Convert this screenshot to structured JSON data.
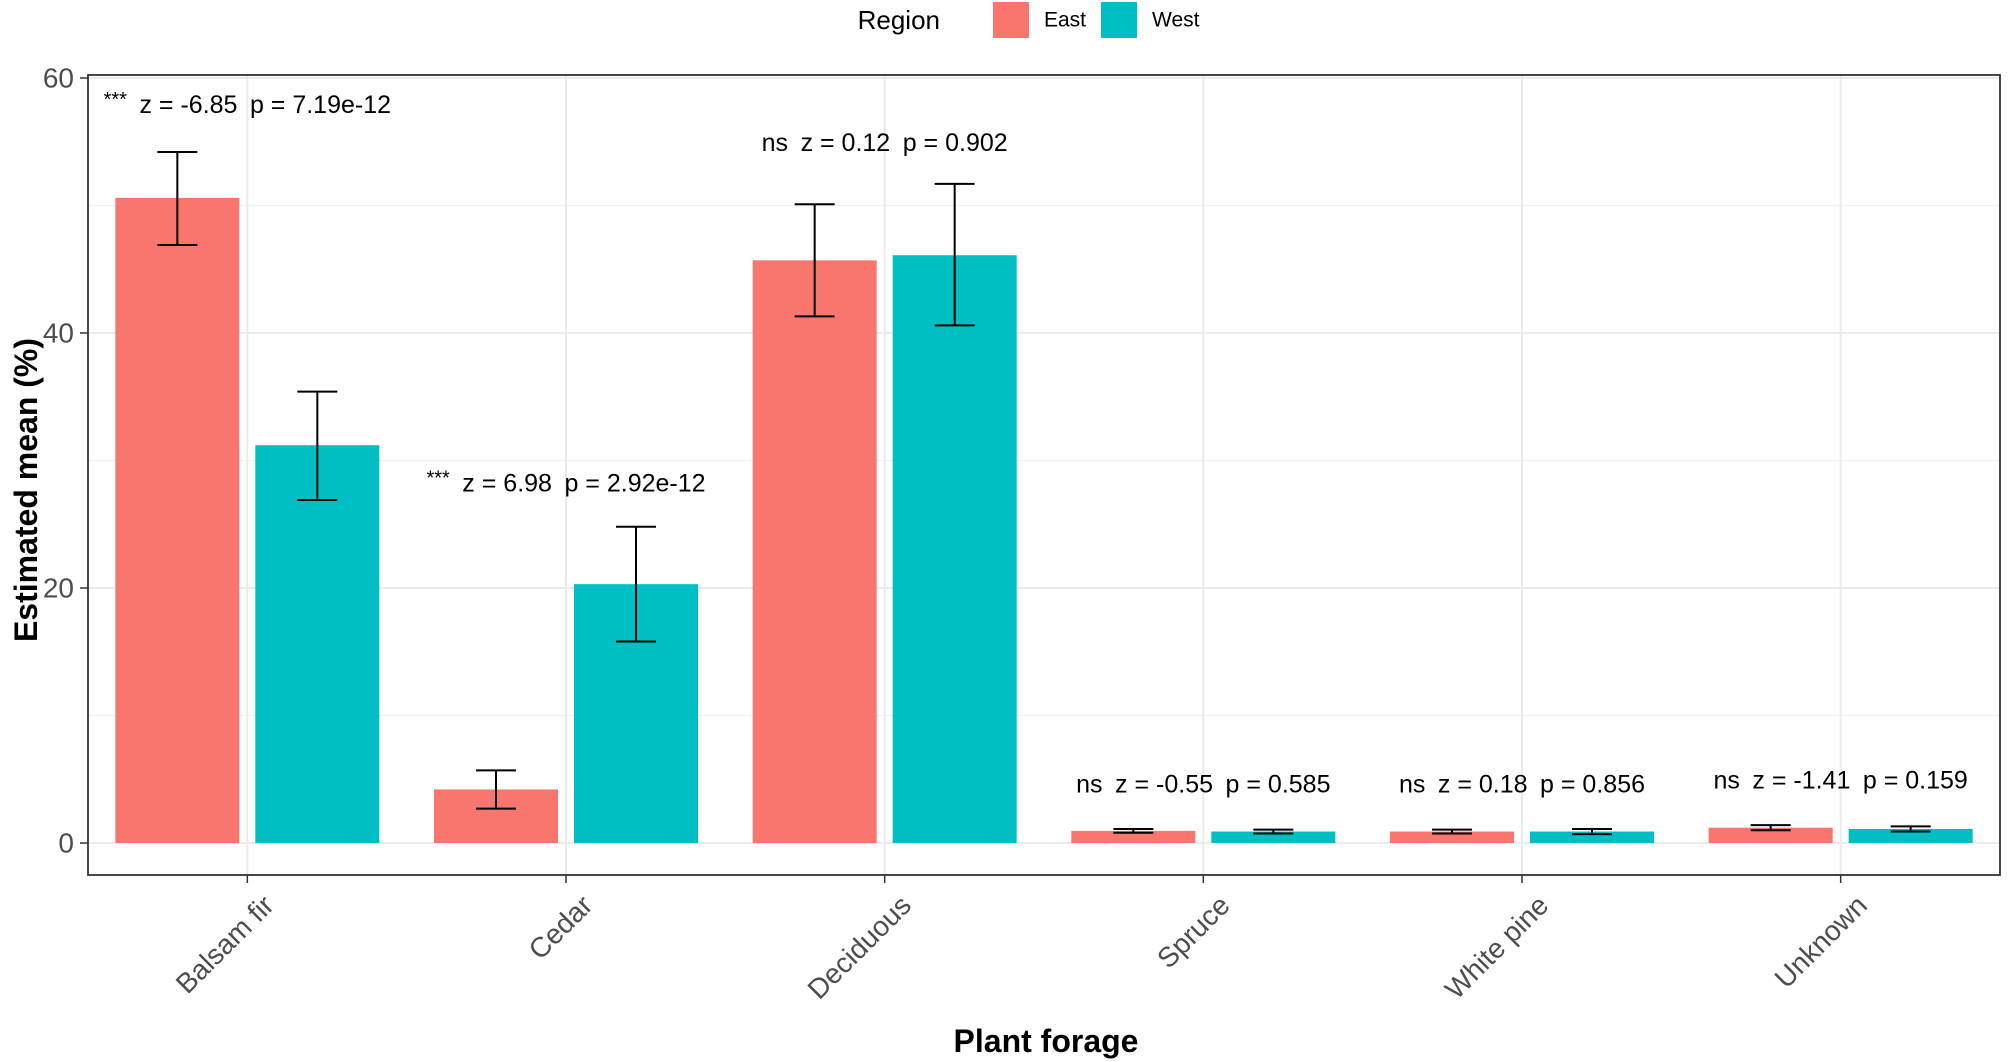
{
  "chart_data": {
    "type": "bar",
    "xlabel": "Plant forage",
    "ylabel": "Estimated mean (%)",
    "ylim": [
      0,
      62.5
    ],
    "yticks": [
      0,
      20,
      40,
      60
    ],
    "categories": [
      "Balsam fir",
      "Cedar",
      "Deciduous",
      "Spruce",
      "White pine",
      "Unknown"
    ],
    "legend": {
      "title": "Region",
      "position": "top"
    },
    "series": [
      {
        "name": "East",
        "color": "#F8766D",
        "values": [
          50.6,
          4.2,
          45.7,
          0.95,
          0.9,
          1.2
        ],
        "error_low": [
          46.9,
          2.7,
          41.3,
          0.8,
          0.75,
          1.0
        ],
        "error_high": [
          54.2,
          5.7,
          50.1,
          1.1,
          1.05,
          1.4
        ]
      },
      {
        "name": "West",
        "color": "#00BFC4",
        "values": [
          31.2,
          20.3,
          46.1,
          0.9,
          0.9,
          1.1
        ],
        "error_low": [
          26.9,
          15.8,
          40.6,
          0.75,
          0.7,
          0.9
        ],
        "error_high": [
          35.4,
          24.8,
          51.7,
          1.05,
          1.1,
          1.3
        ]
      }
    ],
    "annotations": [
      {
        "category": "Balsam fir",
        "sig": "***",
        "z": "z = -6.85",
        "p": "p = 7.19e-12",
        "y": 57.9
      },
      {
        "category": "Cedar",
        "sig": "***",
        "z": "z = 6.98",
        "p": "p = 2.92e-12",
        "y": 28.2
      },
      {
        "category": "Deciduous",
        "sig": "ns",
        "z": "z = 0.12",
        "p": "p = 0.902",
        "y": 54.9
      },
      {
        "category": "Spruce",
        "sig": "ns",
        "z": "z = -0.55",
        "p": "p = 0.585",
        "y": 4.6
      },
      {
        "category": "White pine",
        "sig": "ns",
        "z": "z = 0.18",
        "p": "p = 0.856",
        "y": 4.6
      },
      {
        "category": "Unknown",
        "sig": "ns",
        "z": "z = -1.41",
        "p": "p = 0.159",
        "y": 4.9
      }
    ]
  }
}
